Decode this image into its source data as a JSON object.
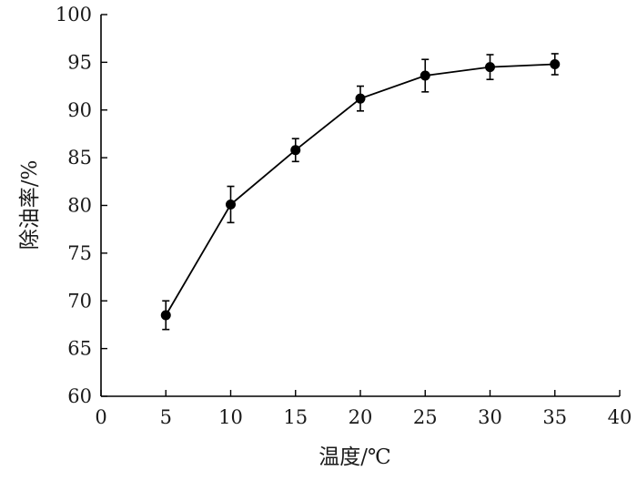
{
  "chart_data": {
    "type": "line",
    "title": "",
    "xlabel": "温度/℃",
    "ylabel": "除油率/%",
    "xlim": [
      0,
      40
    ],
    "ylim": [
      60,
      100
    ],
    "xticks": [
      0,
      5,
      10,
      15,
      20,
      25,
      30,
      35,
      40
    ],
    "yticks": [
      60,
      65,
      70,
      75,
      80,
      85,
      90,
      95,
      100
    ],
    "grid": false,
    "legend": "none",
    "series": [
      {
        "x": [
          5,
          10,
          15,
          20,
          25,
          30,
          35
        ],
        "y": [
          68.5,
          80.1,
          85.8,
          91.2,
          93.6,
          94.5,
          94.8
        ],
        "error": [
          1.5,
          1.9,
          1.2,
          1.3,
          1.7,
          1.3,
          1.1
        ],
        "color": "#000000",
        "marker": "filled-circle"
      }
    ]
  }
}
